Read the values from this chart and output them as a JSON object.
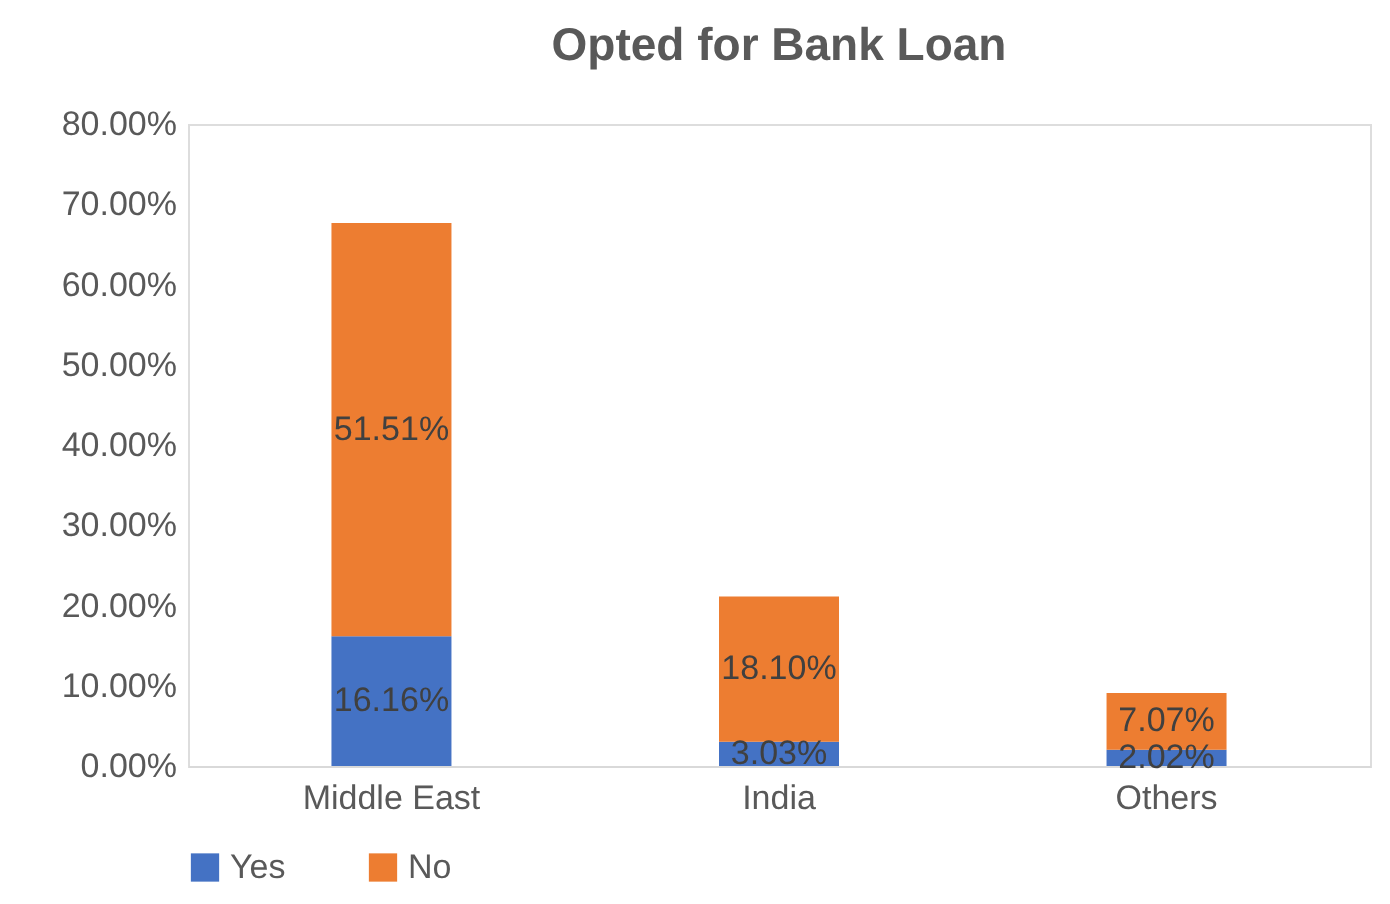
{
  "chart_data": {
    "type": "bar",
    "title": "Opted for Bank Loan",
    "stacked": true,
    "categories": [
      "Middle East",
      "India",
      "Others"
    ],
    "series": [
      {
        "name": "Yes",
        "color": "#4472c4",
        "values": [
          16.16,
          3.03,
          2.02
        ],
        "value_labels": [
          "16.16%",
          "3.03%",
          "2.02%"
        ]
      },
      {
        "name": "No",
        "color": "#ed7d31",
        "values": [
          51.51,
          18.1,
          7.07
        ],
        "value_labels": [
          "51.51%",
          "18.10%",
          "7.07%"
        ]
      }
    ],
    "ylim": [
      0,
      80
    ],
    "yticks": [
      {
        "value": 0,
        "label": "0.00%"
      },
      {
        "value": 10,
        "label": "10.00%"
      },
      {
        "value": 20,
        "label": "20.00%"
      },
      {
        "value": 30,
        "label": "30.00%"
      },
      {
        "value": 40,
        "label": "40.00%"
      },
      {
        "value": 50,
        "label": "50.00%"
      },
      {
        "value": 60,
        "label": "60.00%"
      },
      {
        "value": 70,
        "label": "70.00%"
      },
      {
        "value": 80,
        "label": "80.00%"
      }
    ],
    "grid": false,
    "legend": "bottom"
  }
}
